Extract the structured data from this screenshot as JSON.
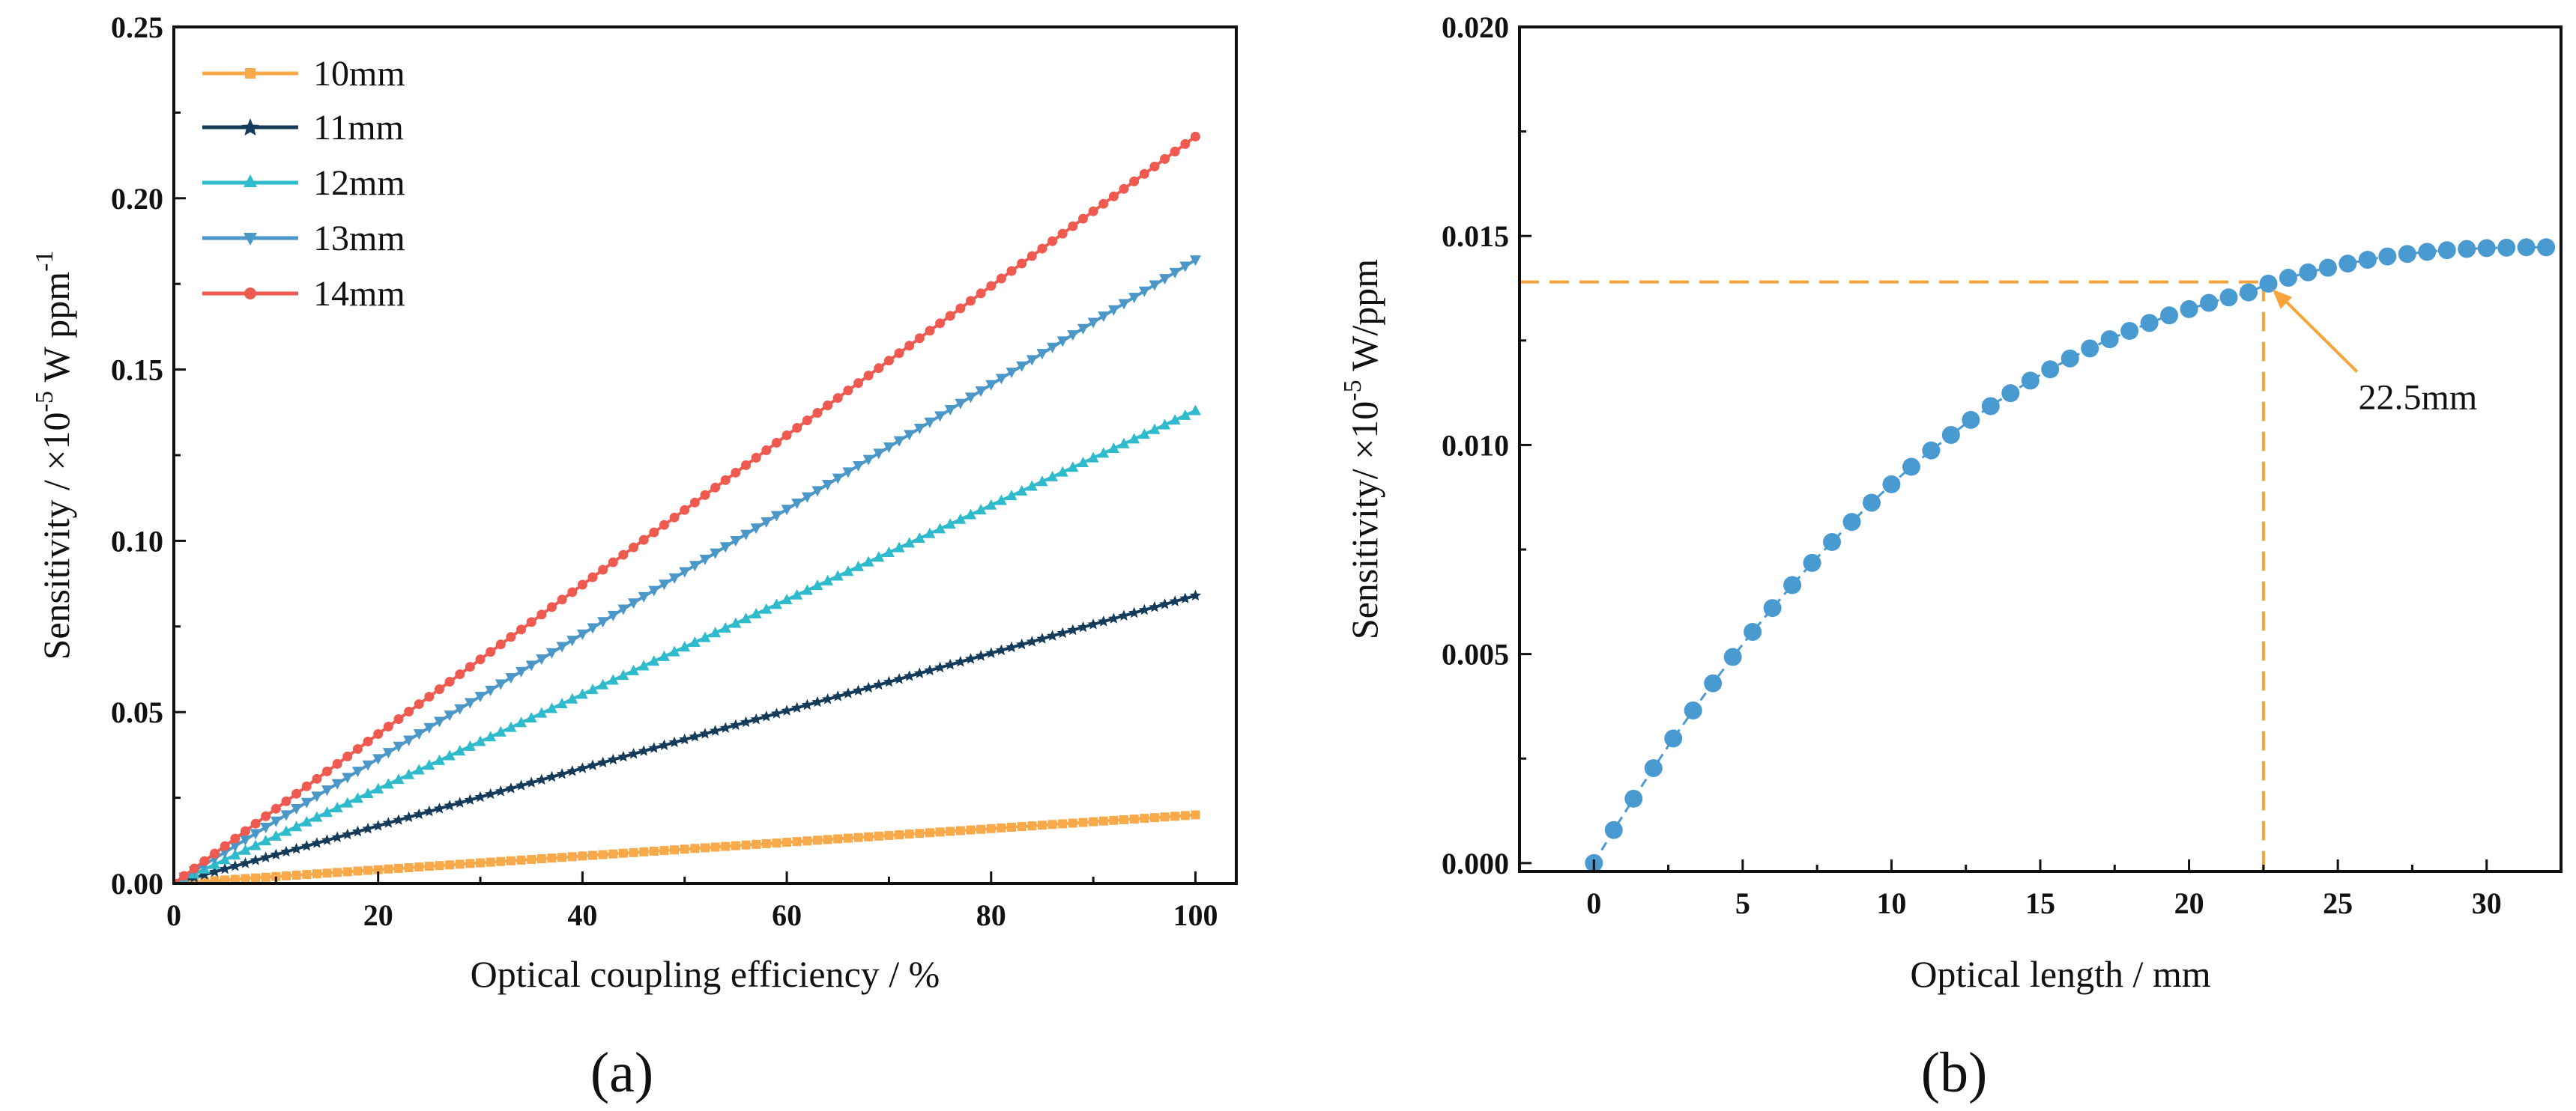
{
  "colors": {
    "10mm": "#f8a94a",
    "11mm": "#143c5a",
    "12mm": "#2fbbcc",
    "13mm": "#4a97c8",
    "14mm": "#ee5a4f",
    "b_points": "#4a9ad2",
    "b_guide": "#f6a33a"
  },
  "chart_data": [
    {
      "panel_label": "(a)",
      "type": "line",
      "xlabel": "Optical coupling efficiency / %",
      "ylabel": "Sensitivity / ×10⁻⁵ W ppm⁻¹",
      "ylabel_parts": {
        "main": "Sensitivity / ×10",
        "exp1": "-5",
        "mid": " W ppm",
        "exp2": "-1"
      },
      "xlim": [
        0,
        104
      ],
      "ylim": [
        0,
        0.25
      ],
      "xticks": [
        "0",
        "20",
        "40",
        "60",
        "80",
        "100"
      ],
      "yticks": [
        "0.00",
        "0.05",
        "0.10",
        "0.15",
        "0.20",
        "0.25"
      ],
      "legend_position": "top-left",
      "x_range": [
        0,
        100
      ],
      "points_per_series": 101,
      "series": [
        {
          "name": "10mm",
          "marker": "square",
          "y_at_0": 0,
          "y_at_100": 0.02
        },
        {
          "name": "11mm",
          "marker": "star",
          "y_at_0": 0,
          "y_at_100": 0.084
        },
        {
          "name": "12mm",
          "marker": "triangle-up",
          "y_at_0": 0,
          "y_at_100": 0.138
        },
        {
          "name": "13mm",
          "marker": "triangle-down",
          "y_at_0": 0,
          "y_at_100": 0.182
        },
        {
          "name": "14mm",
          "marker": "circle",
          "y_at_0": 0,
          "y_at_100": 0.218
        }
      ]
    },
    {
      "panel_label": "(b)",
      "type": "scatter",
      "xlabel": "Optical length / mm",
      "ylabel": "Sensitivity/ ×10⁻⁵ W/ppm",
      "ylabel_parts": {
        "main": "Sensitivity/ ×10",
        "exp1": "-5",
        "mid": " W/ppm"
      },
      "xlim": [
        -2.5,
        32.5
      ],
      "ylim": [
        -0.0002,
        0.02
      ],
      "xticks": [
        "0",
        "5",
        "10",
        "15",
        "20",
        "25",
        "30"
      ],
      "yticks": [
        "0.000",
        "0.005",
        "0.010",
        "0.015",
        "0.020"
      ],
      "annotation": {
        "text": "22.5mm",
        "x": 22.5,
        "y": 0.0139
      },
      "x": [
        0,
        0.667,
        1.333,
        2,
        2.667,
        3.333,
        4,
        4.667,
        5.333,
        6,
        6.667,
        7.333,
        8,
        8.667,
        9.333,
        10,
        10.667,
        11.333,
        12,
        12.667,
        13.333,
        14,
        14.667,
        15.333,
        16,
        16.667,
        17.333,
        18,
        18.667,
        19.333,
        20,
        20.667,
        21.333,
        22,
        22.667,
        23.333,
        24,
        24.667,
        25.333,
        26,
        26.667,
        27.333,
        28,
        28.667,
        29.333,
        30,
        30.667,
        31.333,
        32
      ],
      "y": [
        0.0,
        0.00079,
        0.00154,
        0.00227,
        0.00298,
        0.00365,
        0.0043,
        0.00493,
        0.00553,
        0.0061,
        0.00665,
        0.00718,
        0.00768,
        0.00816,
        0.00862,
        0.00906,
        0.00948,
        0.00987,
        0.01024,
        0.0106,
        0.01093,
        0.01124,
        0.01154,
        0.01181,
        0.01207,
        0.01231,
        0.01253,
        0.01273,
        0.01292,
        0.0131,
        0.01325,
        0.0134,
        0.01353,
        0.01365,
        0.01386,
        0.014,
        0.01413,
        0.01424,
        0.01434,
        0.01443,
        0.01451,
        0.01457,
        0.01462,
        0.01466,
        0.01469,
        0.01471,
        0.01472,
        0.01473,
        0.01473
      ]
    }
  ]
}
